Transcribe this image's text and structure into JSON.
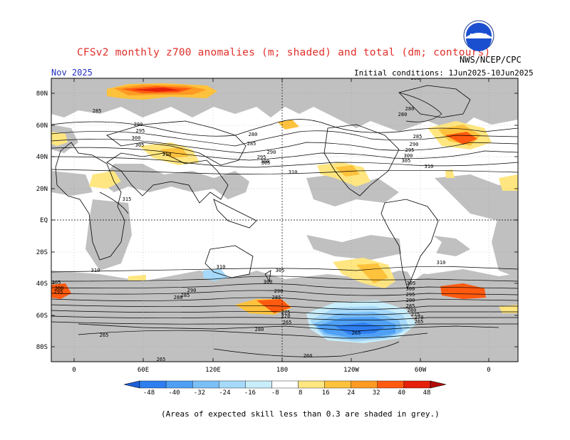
{
  "header": {
    "title": "CFSv2 monthly z700 anomalies (m; shaded) and total (dm; contours)",
    "agency": "NWS/NCEP/CPC",
    "month": "Nov 2025",
    "init": "Initial conditions: 1Jun2025-10Jun2025",
    "logo_text": "NOAA"
  },
  "axes": {
    "lat_labels": [
      "80N",
      "60N",
      "40N",
      "20N",
      "EQ",
      "20S",
      "40S",
      "60S",
      "80S"
    ],
    "lon_labels": [
      "0",
      "60E",
      "120E",
      "180",
      "120W",
      "60W",
      "0"
    ]
  },
  "contour_labels": [
    "285",
    "290",
    "295",
    "300",
    "305",
    "310",
    "280",
    "285",
    "290",
    "295",
    "300",
    "305",
    "310",
    "280",
    "285",
    "290",
    "295",
    "300",
    "305",
    "310",
    "315",
    "310",
    "305",
    "300",
    "290",
    "285",
    "280",
    "275",
    "270",
    "265",
    "260",
    "310",
    "305",
    "300",
    "295",
    "290",
    "285",
    "280",
    "310",
    "305",
    "300",
    "295",
    "290",
    "285",
    "280",
    "275",
    "270",
    "265",
    "280",
    "265",
    "265",
    "265",
    "260"
  ],
  "colorbar": {
    "labels": [
      "-48",
      "-40",
      "-32",
      "-24",
      "-16",
      "-8",
      "8",
      "16",
      "24",
      "32",
      "40",
      "48"
    ],
    "colors": [
      "#1c5fd9",
      "#2e7ef0",
      "#4fa0f5",
      "#7bbff7",
      "#a6d9fa",
      "#c9eefb",
      "#ffffff",
      "#ffe680",
      "#ffc23c",
      "#ff9a22",
      "#ff5a10",
      "#e6200a",
      "#b40a0a"
    ]
  },
  "footnote": "(Areas of expected skill less than 0.3 are shaded in grey.)",
  "colors": {
    "grey_mask": "#c0c0c0",
    "title": "#e0302a",
    "month": "#2030c0"
  }
}
